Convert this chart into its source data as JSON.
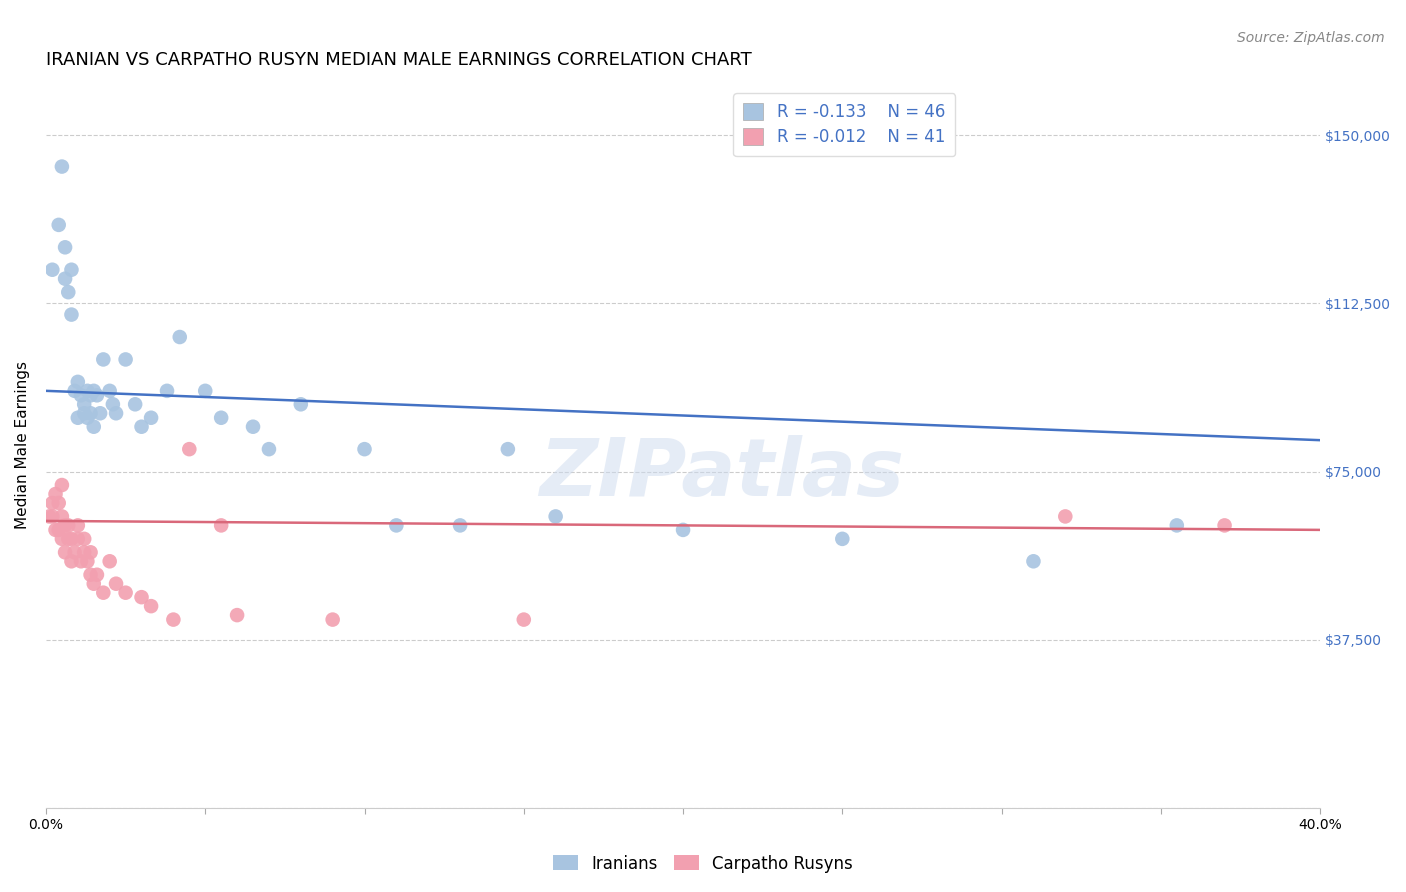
{
  "title": "IRANIAN VS CARPATHO RUSYN MEDIAN MALE EARNINGS CORRELATION CHART",
  "source": "Source: ZipAtlas.com",
  "ylabel": "Median Male Earnings",
  "yticks": [
    0,
    37500,
    75000,
    112500,
    150000
  ],
  "ytick_labels": [
    "",
    "$37,500",
    "$75,000",
    "$112,500",
    "$150,000"
  ],
  "xlim": [
    0.0,
    0.4
  ],
  "ylim": [
    0,
    162000
  ],
  "watermark": "ZIPatlas",
  "iranian_color": "#a8c4e0",
  "carpatho_color": "#f2a0b0",
  "iranian_line_color": "#4472c4",
  "carpatho_line_color": "#d9687a",
  "legend_R_color": "#4472c4",
  "iranian_R": "-0.133",
  "iranian_N": "46",
  "carpatho_R": "-0.012",
  "carpatho_N": "41",
  "iranians_x": [
    0.002,
    0.004,
    0.005,
    0.006,
    0.006,
    0.007,
    0.008,
    0.008,
    0.009,
    0.01,
    0.01,
    0.011,
    0.012,
    0.012,
    0.013,
    0.013,
    0.014,
    0.014,
    0.015,
    0.015,
    0.016,
    0.017,
    0.018,
    0.02,
    0.021,
    0.022,
    0.025,
    0.028,
    0.03,
    0.033,
    0.038,
    0.042,
    0.05,
    0.055,
    0.065,
    0.07,
    0.08,
    0.1,
    0.11,
    0.13,
    0.145,
    0.16,
    0.2,
    0.25,
    0.31,
    0.355
  ],
  "iranians_y": [
    120000,
    130000,
    143000,
    125000,
    118000,
    115000,
    120000,
    110000,
    93000,
    87000,
    95000,
    92000,
    90000,
    88000,
    93000,
    87000,
    92000,
    88000,
    85000,
    93000,
    92000,
    88000,
    100000,
    93000,
    90000,
    88000,
    100000,
    90000,
    85000,
    87000,
    93000,
    105000,
    93000,
    87000,
    85000,
    80000,
    90000,
    80000,
    63000,
    63000,
    80000,
    65000,
    62000,
    60000,
    55000,
    63000
  ],
  "carpatho_x": [
    0.001,
    0.002,
    0.002,
    0.003,
    0.003,
    0.004,
    0.004,
    0.005,
    0.005,
    0.005,
    0.006,
    0.006,
    0.007,
    0.007,
    0.008,
    0.008,
    0.009,
    0.01,
    0.01,
    0.011,
    0.012,
    0.012,
    0.013,
    0.014,
    0.014,
    0.015,
    0.016,
    0.018,
    0.02,
    0.022,
    0.025,
    0.03,
    0.033,
    0.04,
    0.045,
    0.055,
    0.06,
    0.09,
    0.15,
    0.32,
    0.37
  ],
  "carpatho_y": [
    65000,
    65000,
    68000,
    70000,
    62000,
    68000,
    62000,
    72000,
    65000,
    60000,
    63000,
    57000,
    60000,
    63000,
    55000,
    60000,
    57000,
    63000,
    60000,
    55000,
    57000,
    60000,
    55000,
    52000,
    57000,
    50000,
    52000,
    48000,
    55000,
    50000,
    48000,
    47000,
    45000,
    42000,
    80000,
    63000,
    43000,
    42000,
    42000,
    65000,
    63000
  ],
  "iranian_trend_x": [
    0.0,
    0.4
  ],
  "iranian_trend_y": [
    93000,
    82000
  ],
  "carpatho_trend_x": [
    0.0,
    0.4
  ],
  "carpatho_trend_y": [
    64000,
    62000
  ],
  "background_color": "#ffffff",
  "grid_color": "#cccccc",
  "title_fontsize": 13,
  "source_fontsize": 10,
  "axis_label_fontsize": 11,
  "tick_fontsize": 10,
  "legend_fontsize": 12
}
